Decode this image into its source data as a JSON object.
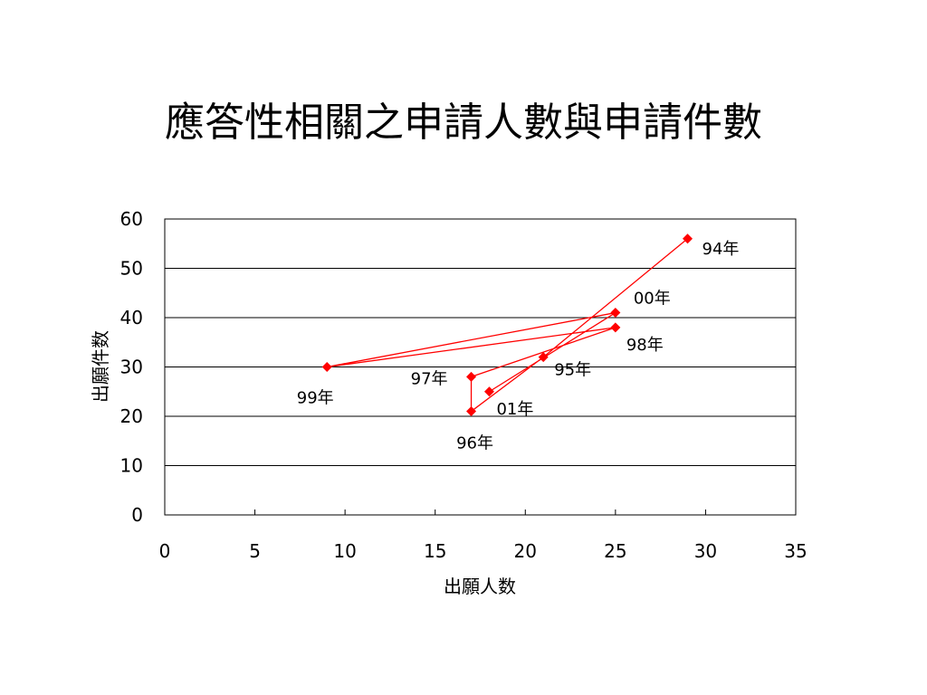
{
  "slide": {
    "title": "應答性相關之申請人數與申請件數"
  },
  "chart_data": {
    "type": "scatter",
    "title": "",
    "xlabel": "出願人数",
    "ylabel": "出願件数",
    "xlim": [
      0,
      35
    ],
    "ylim": [
      0,
      60
    ],
    "xticks": [
      0,
      5,
      10,
      15,
      20,
      25,
      30,
      35
    ],
    "yticks": [
      0,
      10,
      20,
      30,
      40,
      50,
      60
    ],
    "grid": "horizontal",
    "connected": true,
    "series_color": "#ff0000",
    "points": [
      {
        "label": "94年",
        "x": 29,
        "y": 56
      },
      {
        "label": "95年",
        "x": 21,
        "y": 32
      },
      {
        "label": "96年",
        "x": 17,
        "y": 21
      },
      {
        "label": "97年",
        "x": 17,
        "y": 28
      },
      {
        "label": "98年",
        "x": 25,
        "y": 38
      },
      {
        "label": "99年",
        "x": 9,
        "y": 30
      },
      {
        "label": "00年",
        "x": 25,
        "y": 41
      },
      {
        "label": "01年",
        "x": 18,
        "y": 25
      }
    ]
  }
}
